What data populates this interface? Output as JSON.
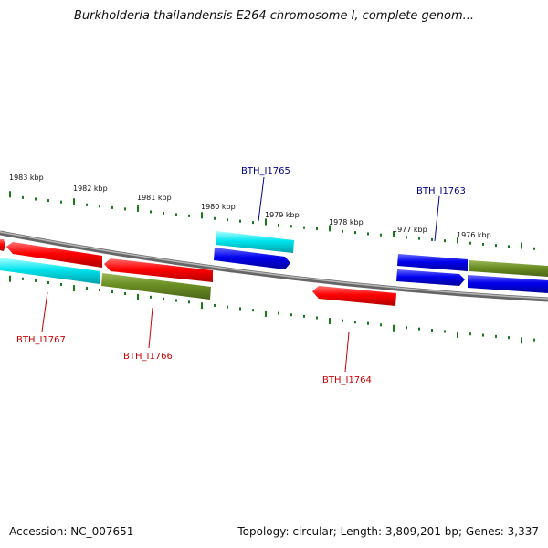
{
  "title": "Burkholderia thailandensis E264 chromosome I, complete genom...",
  "footer": {
    "accession": "Accession: NC_007651",
    "summary": "Topology: circular; Length: 3,809,201 bp; Genes: 3,337"
  },
  "ticks_top": [
    "1983 kbp",
    "1982 kbp",
    "1981 kbp",
    "1980 kbp",
    "1979 kbp",
    "1978 kbp",
    "1977 kbp",
    "1976 kbp"
  ],
  "genes": [
    {
      "name": "BTH_I1765",
      "color": "#00008b"
    },
    {
      "name": "BTH_I1763",
      "color": "#00008b"
    },
    {
      "name": "BTH_I1767",
      "color": "#cc0000"
    },
    {
      "name": "BTH_I1766",
      "color": "#cc0000"
    },
    {
      "name": "BTH_I1764",
      "color": "#cc0000"
    }
  ],
  "colors": {
    "tick": "#1a7a1a",
    "red": "#ff0000",
    "blue": "#0000ee",
    "cyan": "#00e5ee",
    "olive": "#6b8e23",
    "backbone": "#888888"
  }
}
